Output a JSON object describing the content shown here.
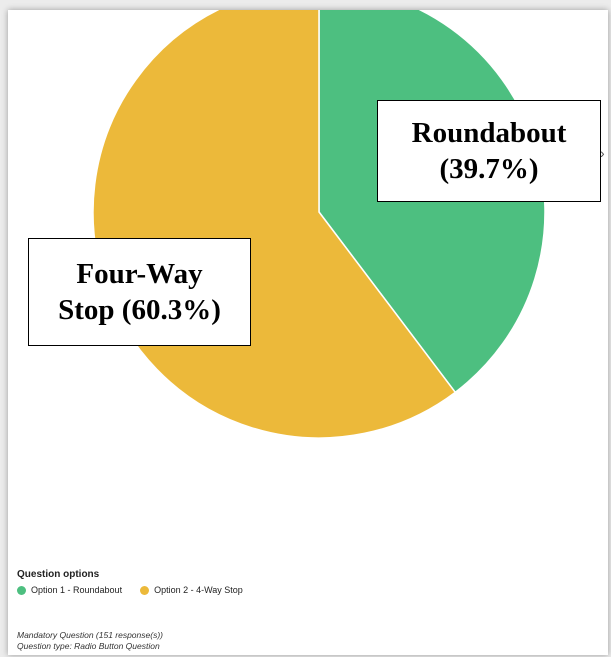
{
  "chart_data": {
    "type": "pie",
    "categories": [
      "Roundabout",
      "Four-Way Stop"
    ],
    "values": [
      39.7,
      60.3
    ],
    "colors": [
      "#4dbf80",
      "#ecb93a"
    ],
    "start_angle": "12 o'clock, clockwise",
    "callouts": {
      "roundabout": "Roundabout\n(39.7%)",
      "fourway": "Four-Way\nStop (60.3%)"
    }
  },
  "legend": {
    "title": "Question options",
    "items": [
      {
        "label": "Option 1 - Roundabout",
        "color": "#4dbf80"
      },
      {
        "label": "Option 2 - 4-Way Stop",
        "color": "#ecb93a"
      }
    ]
  },
  "footer": {
    "line1": "Mandatory Question (151 response(s))",
    "line2": "Question type: Radio Button Question"
  }
}
